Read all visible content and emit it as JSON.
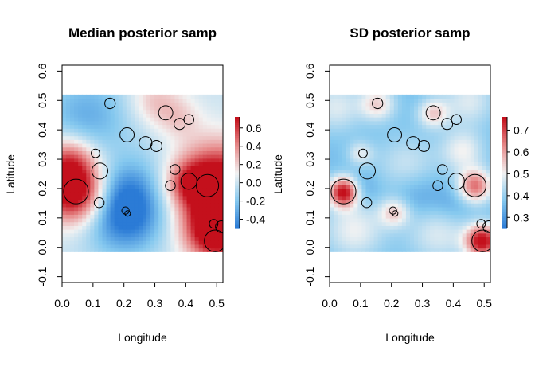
{
  "chart_data": [
    {
      "type": "heatmap",
      "title": "Median posterior samp",
      "xlabel": "Longitude",
      "ylabel": "Latitude",
      "xlim": [
        0.0,
        0.52
      ],
      "ylim": [
        -0.12,
        0.62
      ],
      "field_extent": {
        "x": [
          0.0,
          0.52
        ],
        "y": [
          -0.015,
          0.52
        ]
      },
      "xticks": [
        "0.0",
        "0.1",
        "0.2",
        "0.3",
        "0.4",
        "0.5"
      ],
      "yticks": [
        "-0.1",
        "0.0",
        "0.1",
        "0.2",
        "0.3",
        "0.4",
        "0.5",
        "0.6"
      ],
      "colorbar": {
        "min": -0.5,
        "max": 0.72,
        "ticks": [
          "-0.4",
          "-0.2",
          "0.0",
          "0.2",
          "0.4",
          "0.6"
        ],
        "colors": [
          "#2b7bd6",
          "#86c9ef",
          "#f2f2f2",
          "#e78a8a",
          "#c4101c"
        ]
      },
      "baseline": 0.0,
      "blobs": [
        {
          "x": 0.045,
          "y": 0.19,
          "value": 0.95,
          "radius": 0.075
        },
        {
          "x": 0.02,
          "y": 0.3,
          "value": 0.45,
          "radius": 0.06
        },
        {
          "x": 0.5,
          "y": 0.21,
          "value": 0.95,
          "radius": 0.1
        },
        {
          "x": 0.5,
          "y": 0.05,
          "value": 0.85,
          "radius": 0.07
        },
        {
          "x": 0.41,
          "y": 0.22,
          "value": 0.35,
          "radius": 0.05
        },
        {
          "x": 0.3,
          "y": 0.5,
          "value": 0.25,
          "radius": 0.06
        },
        {
          "x": 0.38,
          "y": 0.44,
          "value": 0.18,
          "radius": 0.05
        },
        {
          "x": 0.2,
          "y": 0.11,
          "value": -0.55,
          "radius": 0.09
        },
        {
          "x": 0.17,
          "y": 0.2,
          "value": -0.2,
          "radius": 0.07
        },
        {
          "x": 0.08,
          "y": 0.45,
          "value": -0.3,
          "radius": 0.1
        },
        {
          "x": 0.3,
          "y": 0.22,
          "value": -0.15,
          "radius": 0.1
        }
      ],
      "circles": [
        {
          "x": 0.155,
          "y": 0.49,
          "r": 0.017
        },
        {
          "x": 0.335,
          "y": 0.458,
          "r": 0.023
        },
        {
          "x": 0.41,
          "y": 0.435,
          "r": 0.016
        },
        {
          "x": 0.38,
          "y": 0.42,
          "r": 0.018
        },
        {
          "x": 0.21,
          "y": 0.383,
          "r": 0.023
        },
        {
          "x": 0.27,
          "y": 0.355,
          "r": 0.021
        },
        {
          "x": 0.305,
          "y": 0.345,
          "r": 0.018
        },
        {
          "x": 0.108,
          "y": 0.32,
          "r": 0.014
        },
        {
          "x": 0.122,
          "y": 0.26,
          "r": 0.026
        },
        {
          "x": 0.365,
          "y": 0.265,
          "r": 0.016
        },
        {
          "x": 0.41,
          "y": 0.225,
          "r": 0.026
        },
        {
          "x": 0.47,
          "y": 0.21,
          "r": 0.036
        },
        {
          "x": 0.35,
          "y": 0.21,
          "r": 0.016
        },
        {
          "x": 0.045,
          "y": 0.19,
          "r": 0.04
        },
        {
          "x": 0.12,
          "y": 0.152,
          "r": 0.016
        },
        {
          "x": 0.205,
          "y": 0.125,
          "r": 0.012
        },
        {
          "x": 0.212,
          "y": 0.115,
          "r": 0.009
        },
        {
          "x": 0.49,
          "y": 0.08,
          "r": 0.014
        },
        {
          "x": 0.515,
          "y": 0.07,
          "r": 0.019
        },
        {
          "x": 0.495,
          "y": 0.022,
          "r": 0.035
        }
      ]
    },
    {
      "type": "heatmap",
      "title": "SD posterior samp",
      "xlabel": "Longitude",
      "ylabel": "Latitude",
      "xlim": [
        0.0,
        0.52
      ],
      "ylim": [
        -0.12,
        0.62
      ],
      "field_extent": {
        "x": [
          0.0,
          0.52
        ],
        "y": [
          -0.015,
          0.52
        ]
      },
      "xticks": [
        "0.0",
        "0.1",
        "0.2",
        "0.3",
        "0.4",
        "0.5"
      ],
      "yticks": [
        "-0.1",
        "0.0",
        "0.1",
        "0.2",
        "0.3",
        "0.4",
        "0.5",
        "0.6"
      ],
      "colorbar": {
        "min": 0.25,
        "max": 0.76,
        "ticks": [
          "0.3",
          "0.4",
          "0.5",
          "0.6",
          "0.7"
        ],
        "colors": [
          "#2b7bd6",
          "#86c9ef",
          "#f2f2f2",
          "#e78a8a",
          "#c4101c"
        ]
      },
      "baseline": 0.36,
      "blobs": [
        {
          "x": 0.045,
          "y": 0.19,
          "value": 0.42,
          "radius": 0.035
        },
        {
          "x": 0.495,
          "y": 0.022,
          "value": 0.42,
          "radius": 0.04
        },
        {
          "x": 0.47,
          "y": 0.21,
          "value": 0.3,
          "radius": 0.04
        },
        {
          "x": 0.155,
          "y": 0.49,
          "value": 0.18,
          "radius": 0.04
        },
        {
          "x": 0.335,
          "y": 0.458,
          "value": 0.18,
          "radius": 0.035
        },
        {
          "x": 0.21,
          "y": 0.12,
          "value": 0.18,
          "radius": 0.035
        },
        {
          "x": 0.1,
          "y": 0.32,
          "value": 0.12,
          "radius": 0.03
        },
        {
          "x": 0.43,
          "y": 0.33,
          "value": 0.14,
          "radius": 0.05
        },
        {
          "x": 0.25,
          "y": 0.28,
          "value": 0.1,
          "radius": 0.07
        },
        {
          "x": 0.08,
          "y": 0.06,
          "value": 0.14,
          "radius": 0.07
        },
        {
          "x": 0.35,
          "y": 0.05,
          "value": 0.12,
          "radius": 0.07
        },
        {
          "x": 0.45,
          "y": 0.5,
          "value": 0.12,
          "radius": 0.06
        },
        {
          "x": 0.02,
          "y": 0.48,
          "value": 0.12,
          "radius": 0.06
        },
        {
          "x": 0.28,
          "y": 0.18,
          "value": -0.06,
          "radius": 0.06
        },
        {
          "x": 0.1,
          "y": 0.2,
          "value": -0.06,
          "radius": 0.04
        },
        {
          "x": 0.4,
          "y": 0.15,
          "value": -0.05,
          "radius": 0.05
        }
      ],
      "circles": [
        {
          "x": 0.155,
          "y": 0.49,
          "r": 0.017
        },
        {
          "x": 0.335,
          "y": 0.458,
          "r": 0.023
        },
        {
          "x": 0.41,
          "y": 0.435,
          "r": 0.016
        },
        {
          "x": 0.38,
          "y": 0.42,
          "r": 0.018
        },
        {
          "x": 0.21,
          "y": 0.383,
          "r": 0.023
        },
        {
          "x": 0.27,
          "y": 0.355,
          "r": 0.021
        },
        {
          "x": 0.305,
          "y": 0.345,
          "r": 0.018
        },
        {
          "x": 0.108,
          "y": 0.32,
          "r": 0.014
        },
        {
          "x": 0.122,
          "y": 0.26,
          "r": 0.026
        },
        {
          "x": 0.365,
          "y": 0.265,
          "r": 0.016
        },
        {
          "x": 0.41,
          "y": 0.225,
          "r": 0.026
        },
        {
          "x": 0.47,
          "y": 0.21,
          "r": 0.036
        },
        {
          "x": 0.35,
          "y": 0.21,
          "r": 0.016
        },
        {
          "x": 0.045,
          "y": 0.19,
          "r": 0.04
        },
        {
          "x": 0.12,
          "y": 0.152,
          "r": 0.016
        },
        {
          "x": 0.205,
          "y": 0.125,
          "r": 0.012
        },
        {
          "x": 0.212,
          "y": 0.115,
          "r": 0.009
        },
        {
          "x": 0.49,
          "y": 0.08,
          "r": 0.014
        },
        {
          "x": 0.515,
          "y": 0.07,
          "r": 0.019
        },
        {
          "x": 0.495,
          "y": 0.022,
          "r": 0.035
        }
      ]
    }
  ]
}
